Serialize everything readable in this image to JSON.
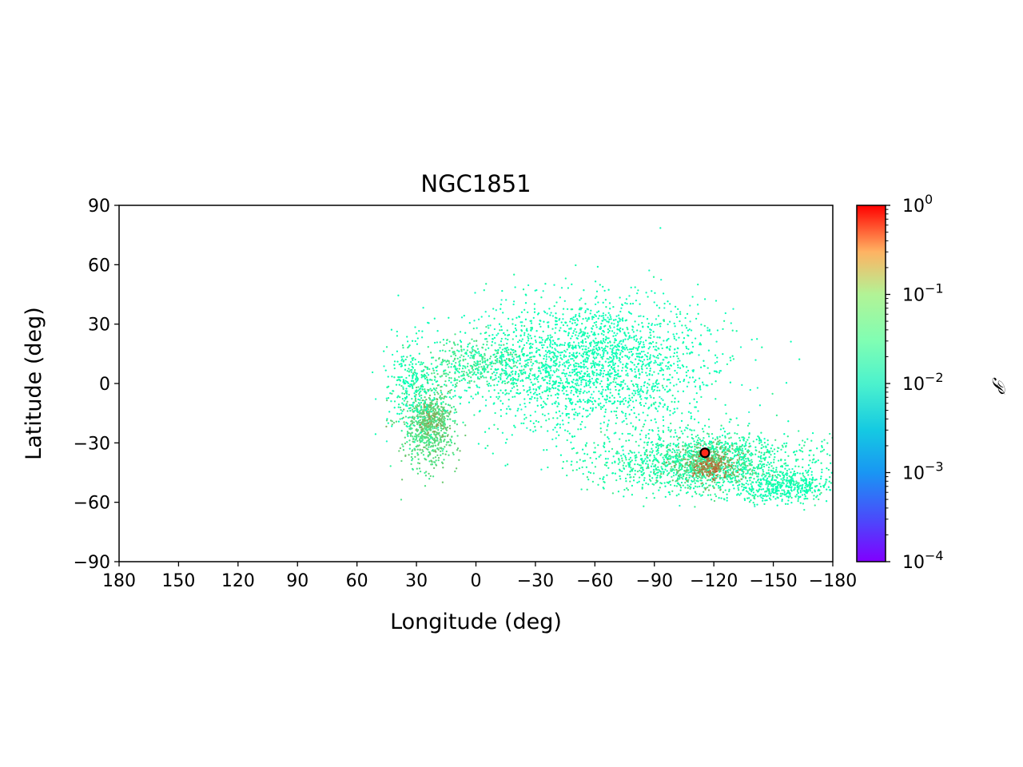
{
  "chart_data": {
    "type": "scatter",
    "title": "NGC1851",
    "xlabel": "Longitude (deg)",
    "ylabel": "Latitude (deg)",
    "xlim": [
      180,
      -180
    ],
    "ylim": [
      -90,
      90
    ],
    "x_ticks": [
      180,
      150,
      120,
      90,
      60,
      30,
      0,
      -30,
      -60,
      -90,
      -120,
      -150,
      -180
    ],
    "x_tick_labels": [
      "180",
      "150",
      "120",
      "90",
      "60",
      "30",
      "0",
      "−30",
      "−60",
      "−90",
      "−120",
      "−150",
      "−180"
    ],
    "y_ticks": [
      90,
      60,
      30,
      0,
      -30,
      -60,
      -90
    ],
    "y_tick_labels": [
      "90",
      "60",
      "30",
      "0",
      "−30",
      "−60",
      "−90"
    ],
    "grid": false,
    "colormap": "rainbow",
    "colorbar": {
      "label": "𝒫",
      "scale": "log",
      "range": [
        0.0001,
        1
      ],
      "tick_values": [
        1,
        0.1,
        0.01,
        0.001,
        0.0001
      ],
      "tick_bases": [
        "10",
        "10",
        "10",
        "10",
        "10"
      ],
      "tick_exponents": [
        "0",
        "−1",
        "−2",
        "−3",
        "−4"
      ]
    },
    "marker": {
      "name": "NGC1851",
      "lon": -115.5,
      "lat": -35.0,
      "color": "#ff2a1a"
    },
    "density_regions": [
      {
        "name": "tail-upper-arm",
        "center": [
          -2,
          10
        ],
        "spread": [
          14,
          6
        ],
        "count": 360,
        "p": 0.03
      },
      {
        "name": "tail-lower-arm",
        "center": [
          24,
          -22
        ],
        "spread": [
          7,
          11
        ],
        "count": 650,
        "p": 0.045
      },
      {
        "name": "tail-core",
        "center": [
          22,
          -18
        ],
        "spread": [
          4,
          5
        ],
        "count": 160,
        "p": 0.09
      },
      {
        "name": "tail-left-wing",
        "center": [
          32,
          0
        ],
        "spread": [
          6,
          12
        ],
        "count": 260,
        "p": 0.012
      },
      {
        "name": "diffuse-cloud",
        "center": [
          -55,
          10
        ],
        "spread": [
          32,
          17
        ],
        "count": 2300,
        "p": 0.01
      },
      {
        "name": "southern-stream",
        "center": [
          -115,
          -40
        ],
        "spread": [
          28,
          8
        ],
        "count": 1500,
        "p": 0.016
      },
      {
        "name": "southern-extension",
        "center": [
          -155,
          -52
        ],
        "spread": [
          12,
          4
        ],
        "count": 420,
        "p": 0.012
      },
      {
        "name": "cluster-halo",
        "center": [
          -118,
          -40
        ],
        "spread": [
          10,
          5
        ],
        "count": 350,
        "p": 0.08
      },
      {
        "name": "cluster-core",
        "center": [
          -119,
          -42
        ],
        "spread": [
          5,
          3
        ],
        "count": 130,
        "p": 0.22
      }
    ]
  }
}
